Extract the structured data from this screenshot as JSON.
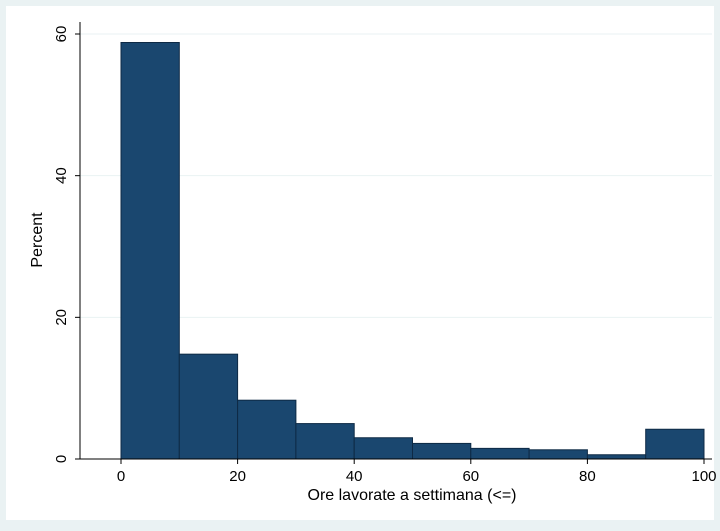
{
  "chart_data": {
    "type": "bar",
    "title": "",
    "xlabel": "Ore lavorate a settimana (<=)",
    "ylabel": "Percent",
    "xlim": [
      0,
      100
    ],
    "ylim": [
      0,
      60
    ],
    "x_ticks": [
      "0",
      "20",
      "40",
      "60",
      "80",
      "100"
    ],
    "y_ticks": [
      "0",
      "20",
      "40",
      "60"
    ],
    "grid": true,
    "legend": "none",
    "bins": [
      {
        "from": 0,
        "to": 10,
        "value": 58.8
      },
      {
        "from": 10,
        "to": 20,
        "value": 14.8
      },
      {
        "from": 20,
        "to": 30,
        "value": 8.3
      },
      {
        "from": 30,
        "to": 40,
        "value": 5.0
      },
      {
        "from": 40,
        "to": 50,
        "value": 3.0
      },
      {
        "from": 50,
        "to": 60,
        "value": 2.2
      },
      {
        "from": 60,
        "to": 70,
        "value": 1.5
      },
      {
        "from": 70,
        "to": 80,
        "value": 1.3
      },
      {
        "from": 80,
        "to": 90,
        "value": 0.6
      },
      {
        "from": 90,
        "to": 100,
        "value": 4.2
      }
    ],
    "colors": {
      "bar_fill": "#1a476f",
      "bar_stroke": "#0e2a45",
      "plot_background": "#ffffff",
      "outer_background": "#eaf2f3",
      "grid": "#eaf2f3",
      "axis": "#000000"
    }
  }
}
